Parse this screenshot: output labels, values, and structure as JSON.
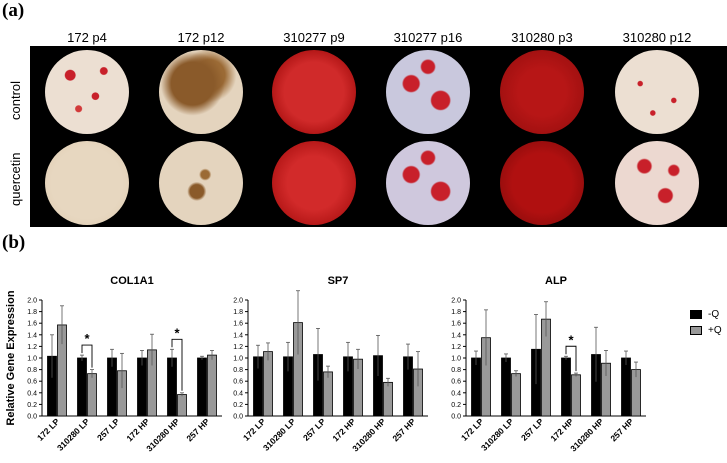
{
  "panel_a": {
    "label": "(a)",
    "columns": [
      "172 p4",
      "172 p12",
      "310277 p9",
      "310277 p16",
      "310280 p3",
      "310280 p12"
    ],
    "rows": [
      "control",
      "quercetin"
    ],
    "colors": {
      "background": "#000000",
      "stain_red": "#c8202a",
      "stain_brown": "#8a5a2a",
      "well_beige": "#e9dccb"
    }
  },
  "panel_b": {
    "label": "(b)",
    "legend": [
      {
        "name": "-Q",
        "color": "#000000"
      },
      {
        "name": "+Q",
        "color": "#999999"
      }
    ]
  },
  "chart_data": [
    {
      "type": "bar",
      "title": "COL1A1",
      "ylabel": "Relative Gene Expression",
      "categories": [
        "172 LP",
        "310280 LP",
        "257 LP",
        "172 HP",
        "310280 HP",
        "257 HP"
      ],
      "ylim": [
        0,
        2.0
      ],
      "yticks": [
        "0.0",
        "0.2",
        "0.4",
        "0.6",
        "0.8",
        "1.0",
        "1.2",
        "1.4",
        "1.6",
        "1.8",
        "2.0"
      ],
      "series": [
        {
          "name": "-Q",
          "values": [
            1.03,
            1.0,
            1.0,
            1.0,
            1.0,
            1.0
          ],
          "errors": [
            0.37,
            0.05,
            0.15,
            0.13,
            0.15,
            0.03
          ]
        },
        {
          "name": "+Q",
          "values": [
            1.57,
            0.73,
            0.78,
            1.14,
            0.37,
            1.05
          ],
          "errors": [
            0.33,
            0.07,
            0.3,
            0.27,
            0.03,
            0.08
          ]
        }
      ],
      "annotations": [
        {
          "text": "*",
          "category_index": 1
        },
        {
          "text": "*",
          "category_index": 4
        }
      ]
    },
    {
      "type": "bar",
      "title": "SP7",
      "ylabel": "",
      "categories": [
        "172 LP",
        "310280 LP",
        "257 LP",
        "172 HP",
        "310280 HP",
        "257 HP"
      ],
      "ylim": [
        0,
        2.0
      ],
      "yticks": [
        "0.0",
        "0.2",
        "0.4",
        "0.6",
        "0.8",
        "1.0",
        "1.2",
        "1.4",
        "1.6",
        "1.8",
        "2.0"
      ],
      "series": [
        {
          "name": "-Q",
          "values": [
            1.02,
            1.02,
            1.06,
            1.02,
            1.04,
            1.02
          ],
          "errors": [
            0.2,
            0.25,
            0.45,
            0.25,
            0.35,
            0.22
          ]
        },
        {
          "name": "+Q",
          "values": [
            1.11,
            1.61,
            0.76,
            0.98,
            0.58,
            0.81
          ],
          "errors": [
            0.15,
            0.55,
            0.1,
            0.17,
            0.07,
            0.3
          ]
        }
      ],
      "annotations": []
    },
    {
      "type": "bar",
      "title": "ALP",
      "ylabel": "",
      "categories": [
        "172 LP",
        "310280 LP",
        "257 LP",
        "172 HP",
        "310280 HP",
        "257 HP"
      ],
      "ylim": [
        0,
        2.0
      ],
      "yticks": [
        "0.0",
        "0.2",
        "0.4",
        "0.6",
        "0.8",
        "1.0",
        "1.2",
        "1.4",
        "1.6",
        "1.8",
        "2.0"
      ],
      "series": [
        {
          "name": "-Q",
          "values": [
            1.0,
            1.0,
            1.15,
            1.0,
            1.06,
            1.0
          ],
          "errors": [
            0.12,
            0.07,
            0.6,
            0.03,
            0.47,
            0.12
          ]
        },
        {
          "name": "+Q",
          "values": [
            1.35,
            0.73,
            1.67,
            0.71,
            0.91,
            0.8
          ],
          "errors": [
            0.48,
            0.05,
            0.3,
            0.03,
            0.22,
            0.13
          ]
        }
      ],
      "annotations": [
        {
          "text": "*",
          "category_index": 3
        }
      ]
    }
  ]
}
